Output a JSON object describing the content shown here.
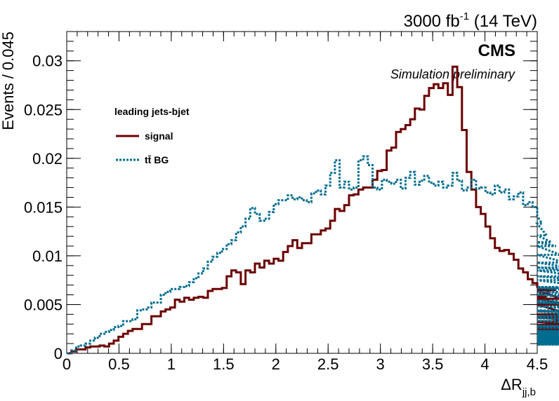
{
  "header": {
    "lumi_value": "3000 fb",
    "lumi_exp": "-1",
    "lumi_energy": " (14 TeV)",
    "cms_label": "CMS",
    "sim_label": "Simulation preliminary"
  },
  "legend": {
    "title": "leading jets-bjet",
    "entries": [
      {
        "label": "signal",
        "color": "#6b0000",
        "style": "solid"
      },
      {
        "label": "tt̄ BG",
        "color": "#006c8f",
        "style": "dotted"
      }
    ]
  },
  "chart_data": {
    "type": "line",
    "drawstyle": "histogram-steps",
    "xlabel": "ΔR",
    "xlabel_sub": "jj,b",
    "ylabel": "Events / 0.045",
    "xlim": [
      0,
      4.5
    ],
    "ylim": [
      0,
      0.033
    ],
    "bin_width": 0.045,
    "x_ticks": [
      0,
      0.5,
      1,
      1.5,
      2,
      2.5,
      3,
      3.5,
      4,
      4.5
    ],
    "x_tick_labels": [
      "0",
      "0.5",
      "1",
      "1.5",
      "2",
      "2.5",
      "3",
      "3.5",
      "4",
      "4.5"
    ],
    "y_ticks": [
      0,
      0.005,
      0.01,
      0.015,
      0.02,
      0.025,
      0.03
    ],
    "y_tick_labels": [
      "0",
      "0.005",
      "0.01",
      "0.015",
      "0.02",
      "0.025",
      "0.03"
    ],
    "grid": false,
    "legend_position": "left",
    "series": [
      {
        "name": "signal",
        "color": "#6b0000",
        "values": [
          0.0,
          0.0002,
          0.0004,
          0.0004,
          0.0006,
          0.0007,
          0.0007,
          0.0008,
          0.0007,
          0.001,
          0.0013,
          0.0017,
          0.002,
          0.0023,
          0.0025,
          0.0025,
          0.003,
          0.003,
          0.0038,
          0.0038,
          0.0043,
          0.0045,
          0.0047,
          0.0055,
          0.0053,
          0.0057,
          0.0055,
          0.0057,
          0.0058,
          0.0057,
          0.0064,
          0.0066,
          0.0066,
          0.0067,
          0.0079,
          0.0085,
          0.0083,
          0.0071,
          0.0085,
          0.0083,
          0.0092,
          0.0088,
          0.0095,
          0.0092,
          0.0097,
          0.0095,
          0.0104,
          0.011,
          0.0116,
          0.0108,
          0.0113,
          0.0113,
          0.0122,
          0.0122,
          0.0126,
          0.0128,
          0.0136,
          0.0148,
          0.0146,
          0.0152,
          0.0162,
          0.0163,
          0.0168,
          0.017,
          0.017,
          0.0178,
          0.0187,
          0.0188,
          0.0208,
          0.0211,
          0.0227,
          0.023,
          0.0234,
          0.024,
          0.0251,
          0.025,
          0.0264,
          0.0272,
          0.0276,
          0.0272,
          0.0277,
          0.0265,
          0.0294,
          0.0273,
          0.0229,
          0.0186,
          0.0168,
          0.015,
          0.0143,
          0.013,
          0.0118,
          0.0108,
          0.0105,
          0.0106,
          0.0102,
          0.0096,
          0.0087,
          0.0083,
          0.0076,
          0.0072,
          0.0068,
          0.0057,
          0.0058,
          0.0065,
          0.0065,
          0.0056,
          0.005,
          0.004,
          0.0037,
          0.0033,
          0.0029,
          0.0032,
          0.0028,
          0.0024,
          0.0026,
          0.0021,
          0.0017,
          0.0021,
          0.0025,
          0.0022,
          0.002,
          0.0017,
          0.0014,
          0.0011,
          0.0015,
          0.0015,
          0.0016,
          0.0016,
          0.0017,
          0.0015,
          0.0016
        ]
      },
      {
        "name": "tt̄ BG",
        "color": "#006c8f",
        "values": [
          0.0,
          0.0003,
          0.0007,
          0.0008,
          0.001,
          0.0013,
          0.0016,
          0.002,
          0.0022,
          0.0024,
          0.0027,
          0.0028,
          0.0033,
          0.0033,
          0.0035,
          0.0044,
          0.0045,
          0.0047,
          0.0052,
          0.0052,
          0.006,
          0.0063,
          0.0066,
          0.0066,
          0.0068,
          0.0069,
          0.0073,
          0.0077,
          0.0082,
          0.0087,
          0.0094,
          0.0099,
          0.0103,
          0.0107,
          0.0112,
          0.0116,
          0.0124,
          0.013,
          0.0138,
          0.0149,
          0.0143,
          0.0136,
          0.0138,
          0.0145,
          0.0153,
          0.0157,
          0.0157,
          0.0162,
          0.0158,
          0.016,
          0.0157,
          0.0155,
          0.0164,
          0.0167,
          0.0163,
          0.0172,
          0.0185,
          0.0198,
          0.017,
          0.0176,
          0.0168,
          0.017,
          0.0198,
          0.0202,
          0.0193,
          0.017,
          0.0168,
          0.0178,
          0.0176,
          0.0174,
          0.0178,
          0.0169,
          0.018,
          0.0186,
          0.0173,
          0.0177,
          0.0182,
          0.0175,
          0.0172,
          0.0176,
          0.017,
          0.0172,
          0.0185,
          0.0177,
          0.0167,
          0.017,
          0.0178,
          0.0169,
          0.017,
          0.0165,
          0.0163,
          0.0172,
          0.0165,
          0.0168,
          0.0158,
          0.0161,
          0.0165,
          0.0152,
          0.0155,
          0.015,
          0.0141,
          0.0133,
          0.0121,
          0.0114,
          0.011,
          0.0101,
          0.0093,
          0.0088,
          0.0085,
          0.0079,
          0.0075,
          0.0068,
          0.0067,
          0.0063,
          0.006,
          0.0054,
          0.0052,
          0.0048,
          0.0044,
          0.0038,
          0.0043,
          0.0036,
          0.0033,
          0.0028,
          0.0026,
          0.0028,
          0.0022,
          0.0018,
          0.0023,
          0.002,
          0.0014,
          0.0016,
          0.0018,
          0.0014,
          0.0017,
          0.0016,
          0.0021,
          0.002,
          0.0015,
          0.0013,
          0.0018,
          0.0013,
          0.0014,
          0.0012,
          0.0013,
          0.001,
          0.0012,
          0.0013,
          0.0011,
          0.0009,
          0.001
        ]
      }
    ]
  }
}
